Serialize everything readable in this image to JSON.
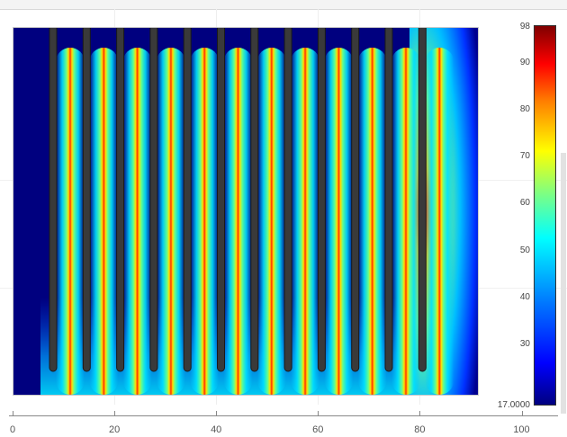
{
  "colorbar": {
    "max_label": "98",
    "min_label": "17.0000",
    "ticks": [
      "90",
      "80",
      "70",
      "60",
      "50",
      "40",
      "30"
    ],
    "tick_values": [
      90,
      80,
      70,
      60,
      50,
      40,
      30
    ],
    "range": [
      17,
      98
    ],
    "colormap": "jet"
  },
  "x_axis": {
    "ticks": [
      "0",
      "20",
      "40",
      "60",
      "80",
      "100"
    ],
    "tick_values": [
      0,
      20,
      40,
      60,
      80,
      100
    ]
  },
  "heatmap": {
    "background_color": "#00007f",
    "baffle_color": "#3a3a3a",
    "baffle_count": 12,
    "channel_count": 12
  }
}
